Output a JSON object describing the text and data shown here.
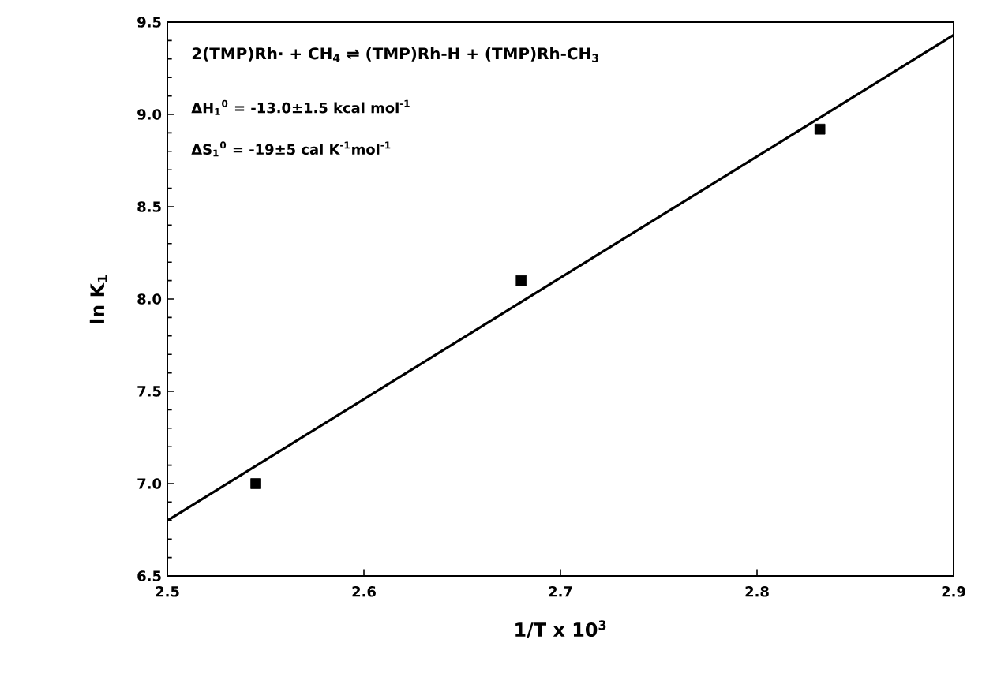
{
  "chart_data": {
    "type": "scatter",
    "xlabel": "1/T x 10$^{3}$",
    "ylabel": "ln K$_{1}$",
    "xlim": [
      2.5,
      2.9
    ],
    "ylim": [
      6.5,
      9.5
    ],
    "xticks": [
      {
        "value": 2.5,
        "label": "2.5"
      },
      {
        "value": 2.6,
        "label": "2.6"
      },
      {
        "value": 2.7,
        "label": "2.7"
      },
      {
        "value": 2.8,
        "label": "2.8"
      },
      {
        "value": 2.9,
        "label": "2.9"
      }
    ],
    "yticks": [
      {
        "value": 6.5,
        "label": "6.5"
      },
      {
        "value": 7,
        "label": "7.0"
      },
      {
        "value": 7.5,
        "label": "7.5"
      },
      {
        "value": 8,
        "label": "8.0"
      },
      {
        "value": 8.5,
        "label": "8.5"
      },
      {
        "value": 9,
        "label": "9.0"
      },
      {
        "value": 9.5,
        "label": "9.5"
      }
    ],
    "grid": false,
    "series": [
      {
        "marker": "square",
        "color": "#000000",
        "x": [
          2.545,
          2.68,
          2.832
        ],
        "values": [
          7.0,
          8.1,
          8.92
        ]
      },
      {
        "type": "line",
        "color": "#000000",
        "x": [
          2.5,
          2.9
        ],
        "values": [
          6.8,
          9.43
        ]
      }
    ],
    "annotations": [
      "2(TMP)Rh· + CH$_{4}$ ⇌ (TMP)Rh-H + (TMP)Rh-CH$_{3}$",
      "ΔH$_{1}$$^{0}$ = -13.0±1.5 kcal mol$^{-1}$",
      "ΔS$_{1}$$^{0}$ = -19±5 cal K$^{-1}$mol$^{-1}$"
    ]
  }
}
